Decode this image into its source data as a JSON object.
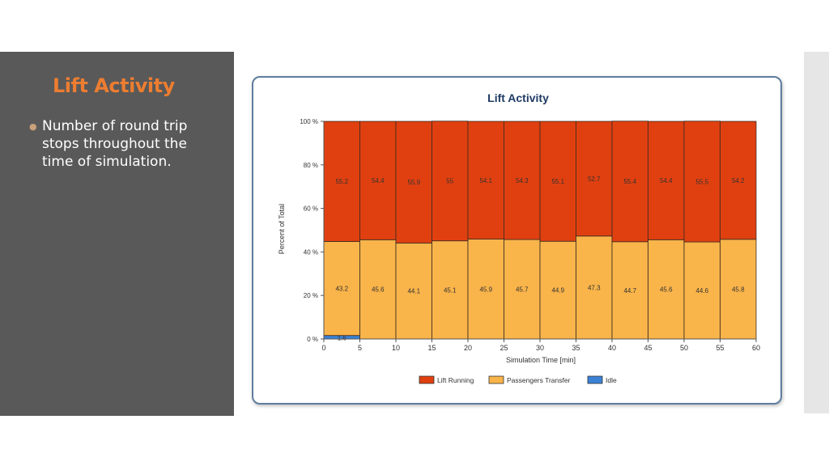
{
  "slide": {
    "title": "Lift Activity",
    "bullets": [
      "Number of round trip stops throughout the time of simulation."
    ]
  },
  "colors": {
    "panel_background": "#595959",
    "title_accent": "#ed7d31",
    "lift_running": "#e04010",
    "passengers_transfer": "#f9b44a",
    "idle": "#3b82d6"
  },
  "chart_data": {
    "type": "bar",
    "stacked": true,
    "title": "Lift Activity",
    "xlabel": "Simulation Time [min]",
    "ylabel": "Percent of Total",
    "x_edges": [
      0,
      5,
      10,
      15,
      20,
      25,
      30,
      35,
      40,
      45,
      50,
      55,
      60
    ],
    "x_ticks": [
      "0",
      "5",
      "10",
      "15",
      "20",
      "25",
      "30",
      "35",
      "40",
      "45",
      "50",
      "55",
      "60"
    ],
    "y_ticks": [
      "0 %",
      "20 %",
      "40 %",
      "60 %",
      "80 %",
      "100 %"
    ],
    "ylim": [
      0,
      100
    ],
    "legend_position": "bottom",
    "series": [
      {
        "name": "Idle",
        "values": [
          1.6,
          0,
          0,
          0,
          0,
          0,
          0,
          0,
          0,
          0,
          0,
          0
        ],
        "labels": [
          "1.6",
          "",
          "",
          "",
          "",
          "",
          "",
          "",
          "",
          "",
          "",
          ""
        ]
      },
      {
        "name": "Passengers Transfer",
        "values": [
          43.2,
          45.6,
          44.1,
          45.1,
          45.9,
          45.7,
          44.9,
          47.3,
          44.7,
          45.6,
          44.6,
          45.8
        ],
        "labels": [
          "43.2",
          "45.6",
          "44.1",
          "45.1",
          "45.9",
          "45.7",
          "44.9",
          "47.3",
          "44.7",
          "45.6",
          "44.6",
          "45.8"
        ]
      },
      {
        "name": "Lift Running",
        "values": [
          55.2,
          54.4,
          55.9,
          55,
          54.1,
          54.3,
          55.1,
          52.7,
          55.4,
          54.4,
          55.5,
          54.2
        ],
        "labels": [
          "55.2",
          "54.4",
          "55.9",
          "55",
          "54.1",
          "54.3",
          "55.1",
          "52.7",
          "55.4",
          "54.4",
          "55.5",
          "54.2"
        ]
      }
    ],
    "legend_order": [
      "Lift Running",
      "Passengers Transfer",
      "Idle"
    ]
  }
}
